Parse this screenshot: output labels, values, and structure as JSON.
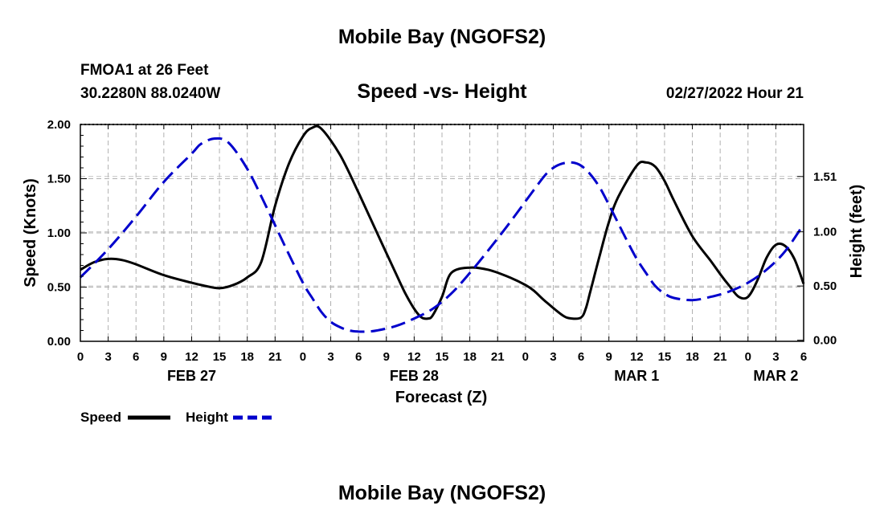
{
  "header": {
    "title": "Mobile Bay (NGOFS2)",
    "station": "FMOA1 at 26 Feet",
    "coords": "30.2280N  88.0240W",
    "subtitle": "Speed -vs- Height",
    "datetime": "02/27/2022 Hour 21"
  },
  "footer": {
    "title": "Mobile Bay (NGOFS2)"
  },
  "chart_data": {
    "type": "line",
    "title": "Speed -vs- Height",
    "xlabel": "Forecast (Z)",
    "ylabel": "Speed (Knots)",
    "y2label": "Height (feet)",
    "grid": true,
    "legend_position": "bottom-left",
    "x_hour_range": [
      0,
      78
    ],
    "x_tick_step_hours": 3,
    "x_tick_labels": [
      "0",
      "3",
      "6",
      "9",
      "12",
      "15",
      "18",
      "21",
      "0",
      "3",
      "6",
      "9",
      "12",
      "15",
      "18",
      "21",
      "0",
      "3",
      "6",
      "9",
      "12",
      "15",
      "18",
      "21",
      "0",
      "3",
      "6"
    ],
    "date_labels": [
      {
        "label": "FEB 27",
        "hour": 12
      },
      {
        "label": "FEB 28",
        "hour": 36
      },
      {
        "label": "MAR 1",
        "hour": 60
      },
      {
        "label": "MAR 2",
        "hour": 75
      }
    ],
    "y_left": {
      "range": [
        0,
        2.0
      ],
      "ticks": [
        0.0,
        0.5,
        1.0,
        1.5,
        2.0
      ],
      "tick_labels": [
        "0.00",
        "0.50",
        "1.00",
        "1.50",
        "2.00"
      ]
    },
    "y_right": {
      "range": [
        -0.01,
        1.99
      ],
      "ticks": [
        0.0,
        0.5,
        1.0,
        1.51
      ],
      "tick_labels": [
        "0.00",
        "0.50",
        "1.00",
        "1.51"
      ]
    },
    "series": [
      {
        "name": "Speed",
        "axis": "left",
        "color": "#000000",
        "dash": "solid",
        "x": [
          0,
          1.5,
          3,
          4.5,
          6,
          9,
          12,
          13.5,
          15,
          16.5,
          18,
          19.5,
          21,
          22.5,
          24,
          25,
          26,
          28,
          30,
          32,
          34,
          35,
          36,
          36.8,
          37.5,
          38,
          39,
          40,
          42,
          44,
          46,
          48,
          49,
          50,
          52,
          53,
          54,
          54.5,
          55,
          56,
          57,
          58,
          60,
          61,
          62,
          63,
          64,
          66,
          68,
          69,
          70,
          71,
          72,
          73,
          74,
          75,
          76,
          77,
          78
        ],
        "y": [
          0.66,
          0.73,
          0.76,
          0.75,
          0.71,
          0.61,
          0.54,
          0.51,
          0.49,
          0.52,
          0.59,
          0.73,
          1.25,
          1.64,
          1.89,
          1.97,
          1.96,
          1.72,
          1.37,
          1.0,
          0.63,
          0.45,
          0.3,
          0.22,
          0.21,
          0.24,
          0.41,
          0.63,
          0.68,
          0.66,
          0.6,
          0.52,
          0.46,
          0.38,
          0.24,
          0.21,
          0.22,
          0.3,
          0.46,
          0.79,
          1.1,
          1.33,
          1.62,
          1.65,
          1.61,
          1.48,
          1.3,
          0.97,
          0.74,
          0.62,
          0.51,
          0.41,
          0.41,
          0.56,
          0.77,
          0.89,
          0.88,
          0.76,
          0.53
        ]
      },
      {
        "name": "Height",
        "axis": "right",
        "color": "#0000cc",
        "dash": "dashed",
        "x": [
          0,
          3,
          6,
          9,
          12,
          13,
          14.5,
          16,
          18,
          20,
          22,
          24,
          25,
          26,
          27,
          28,
          29,
          30,
          31,
          32,
          34,
          36,
          38,
          40,
          42,
          44,
          46,
          48,
          50,
          51,
          52,
          53,
          54,
          55,
          56,
          57,
          58,
          59,
          60,
          61,
          62,
          63,
          64,
          66,
          68,
          70,
          72,
          74,
          76,
          78
        ],
        "y": [
          0.58,
          0.84,
          1.14,
          1.46,
          1.72,
          1.81,
          1.86,
          1.82,
          1.58,
          1.24,
          0.88,
          0.53,
          0.39,
          0.26,
          0.17,
          0.12,
          0.09,
          0.08,
          0.08,
          0.09,
          0.13,
          0.2,
          0.29,
          0.43,
          0.62,
          0.83,
          1.05,
          1.28,
          1.51,
          1.59,
          1.63,
          1.64,
          1.61,
          1.53,
          1.41,
          1.25,
          1.08,
          0.91,
          0.75,
          0.62,
          0.5,
          0.43,
          0.39,
          0.37,
          0.4,
          0.45,
          0.53,
          0.65,
          0.82,
          1.07
        ]
      }
    ]
  }
}
